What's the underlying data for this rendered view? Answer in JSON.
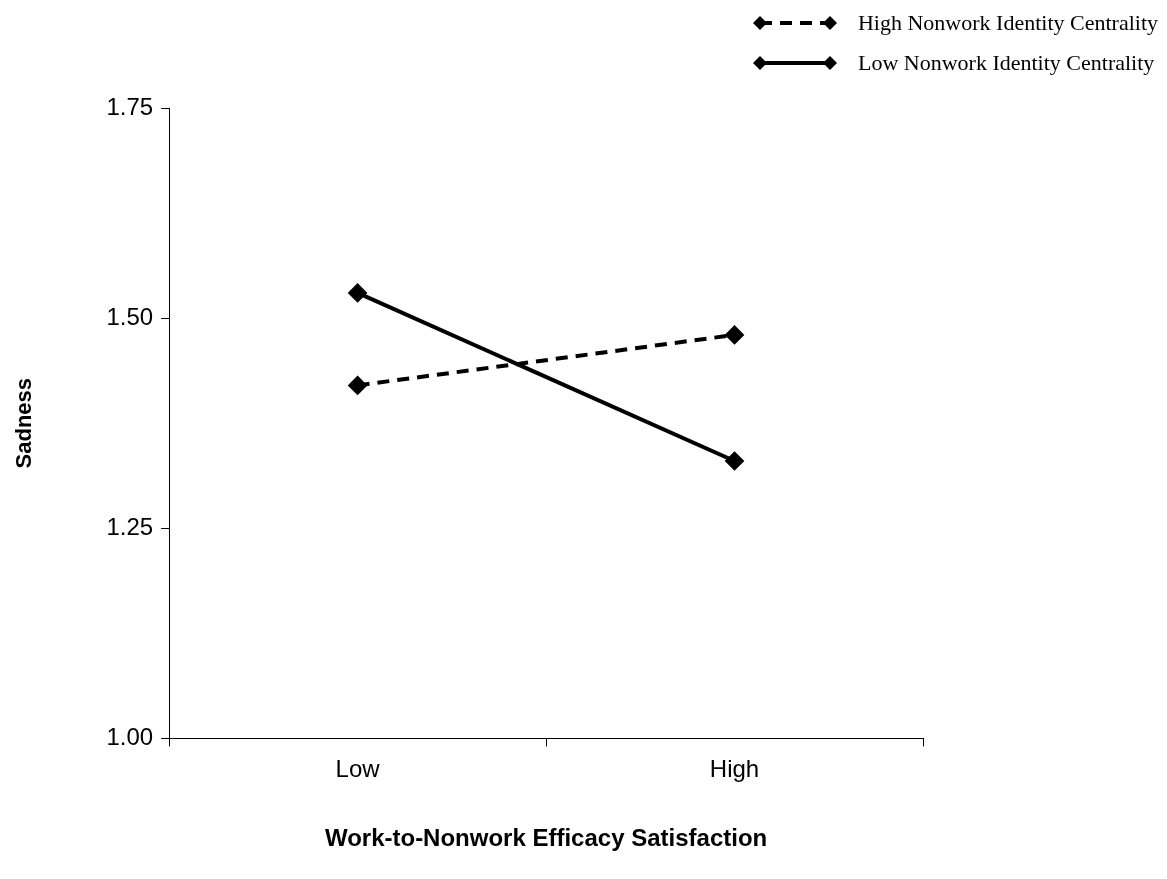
{
  "chart_data": {
    "type": "line",
    "xlabel": "Work-to-Nonwork Efficacy Satisfaction",
    "ylabel": "Sadness",
    "categories": [
      "Low",
      "High"
    ],
    "series": [
      {
        "name": "High Nonwork Identity Centrality",
        "color": "#000000",
        "values": [
          1.42,
          1.48
        ],
        "line_style": "dashed"
      },
      {
        "name": "Low Nonwork Identity Centrality",
        "color": "#000000",
        "values": [
          1.53,
          1.33
        ],
        "line_style": "solid"
      }
    ],
    "ylim": [
      1.0,
      1.75
    ],
    "yticks": [
      {
        "value": 1.0,
        "label": "1.00"
      },
      {
        "value": 1.25,
        "label": "1.25"
      },
      {
        "value": 1.5,
        "label": "1.50"
      },
      {
        "value": 1.75,
        "label": "1.75"
      }
    ],
    "marker": "diamond",
    "grid": false,
    "legend": "top right"
  }
}
